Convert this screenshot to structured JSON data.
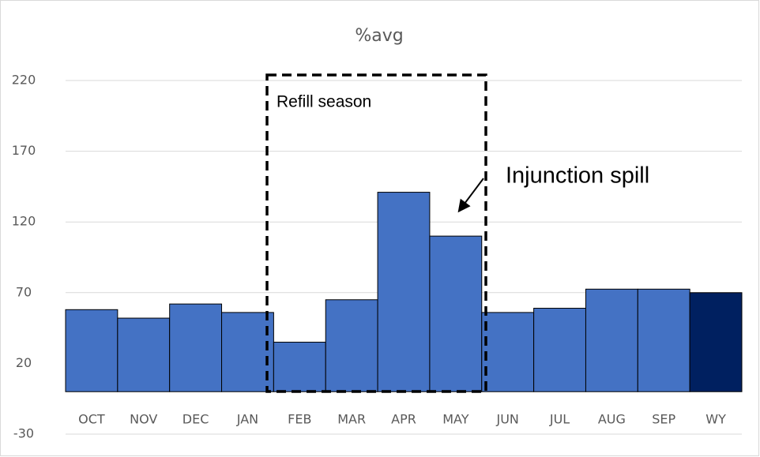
{
  "chart_data": {
    "type": "bar",
    "title": "%avg",
    "categories": [
      "OCT",
      "NOV",
      "DEC",
      "JAN",
      "FEB",
      "MAR",
      "APR",
      "MAY",
      "JUN",
      "JUL",
      "AUG",
      "SEP",
      "WY"
    ],
    "values": [
      58,
      52,
      62,
      56,
      35,
      65,
      141,
      110,
      56,
      59,
      72.5,
      72.5,
      70
    ],
    "colors": [
      "#4472c4",
      "#4472c4",
      "#4472c4",
      "#4472c4",
      "#4472c4",
      "#4472c4",
      "#4472c4",
      "#4472c4",
      "#4472c4",
      "#4472c4",
      "#4472c4",
      "#4472c4",
      "#002060"
    ],
    "ylim": [
      -30,
      220
    ],
    "yticks": [
      -30,
      20,
      70,
      120,
      170,
      220
    ],
    "grid": true,
    "annotations": [
      "Refill season",
      "Injunction spill"
    ]
  }
}
